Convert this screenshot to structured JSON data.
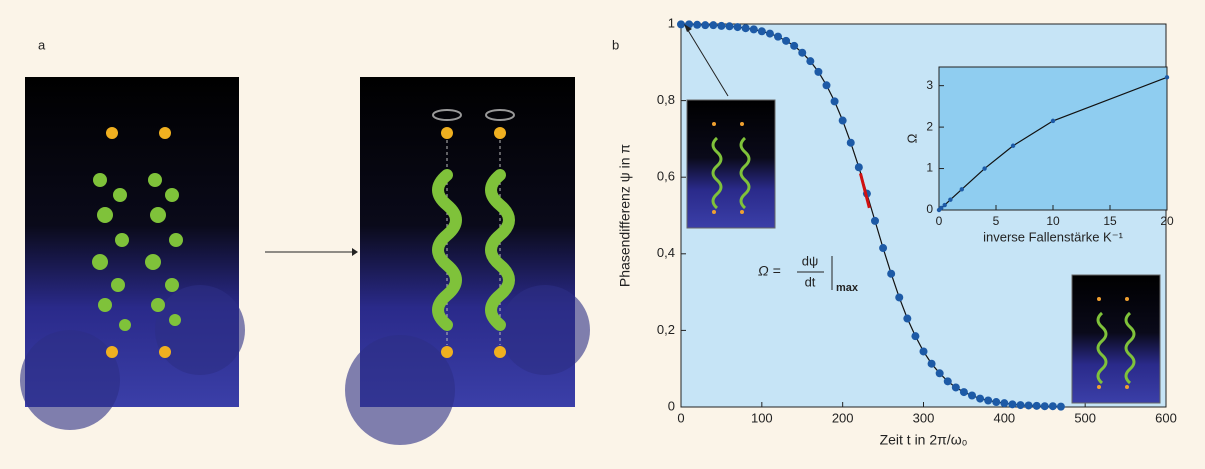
{
  "panel_labels": [
    "a",
    "b"
  ],
  "chart_data": [
    {
      "type": "scatter",
      "x_label": "Zeit t in 2π/ω₀",
      "y_label": "Phasendifferenz ψ in π",
      "annotation": {
        "lhs": "Ω =",
        "num": "dψ",
        "den": "dt",
        "sub": "max"
      },
      "x": [
        0,
        10,
        20,
        30,
        40,
        50,
        60,
        70,
        80,
        90,
        100,
        110,
        120,
        130,
        140,
        150,
        160,
        170,
        180,
        190,
        200,
        210,
        220,
        230,
        240,
        250,
        260,
        270,
        280,
        290,
        300,
        310,
        320,
        330,
        340,
        350,
        360,
        370,
        380,
        390,
        400,
        410,
        420,
        430,
        440,
        450,
        460,
        470
      ],
      "values": [
        0.999,
        0.999,
        0.998,
        0.997,
        0.997,
        0.995,
        0.994,
        0.992,
        0.989,
        0.986,
        0.981,
        0.975,
        0.967,
        0.956,
        0.943,
        0.925,
        0.903,
        0.875,
        0.84,
        0.798,
        0.748,
        0.69,
        0.626,
        0.557,
        0.486,
        0.415,
        0.348,
        0.286,
        0.231,
        0.185,
        0.145,
        0.113,
        0.088,
        0.067,
        0.051,
        0.039,
        0.03,
        0.022,
        0.017,
        0.013,
        0.01,
        0.007,
        0.005,
        0.004,
        0.003,
        0.002,
        0.002,
        0.001
      ],
      "color": "#1d5aa6",
      "line_color": "#111111",
      "background": "#c6e4f6",
      "xlim": [
        0,
        600
      ],
      "xticks": [
        0,
        100,
        200,
        300,
        400,
        500,
        600
      ],
      "ylim": [
        0,
        1
      ],
      "yticks": [
        0,
        {
          "value": 0.2,
          "label": "0,2"
        },
        {
          "value": 0.4,
          "label": "0,4"
        },
        {
          "value": 0.6,
          "label": "0,6"
        },
        {
          "value": 0.8,
          "label": "0,8"
        },
        1
      ]
    },
    {
      "type": "scatter",
      "x_label": "inverse Fallenstärke K⁻¹",
      "y_label": "Ω",
      "x": [
        0,
        0.2,
        0.5,
        1,
        2,
        4,
        6.5,
        10,
        20
      ],
      "values": [
        0,
        0.05,
        0.12,
        0.25,
        0.5,
        1,
        1.55,
        2.15,
        3.2
      ],
      "color": "#1d5aa6",
      "line_color": "#111111",
      "background": "#8fcdf0",
      "xlim": [
        0,
        20
      ],
      "xticks": [
        0,
        5,
        10,
        15,
        20
      ],
      "ylim": [
        0,
        3.45
      ],
      "yticks": [
        0,
        1,
        2,
        3
      ]
    }
  ]
}
